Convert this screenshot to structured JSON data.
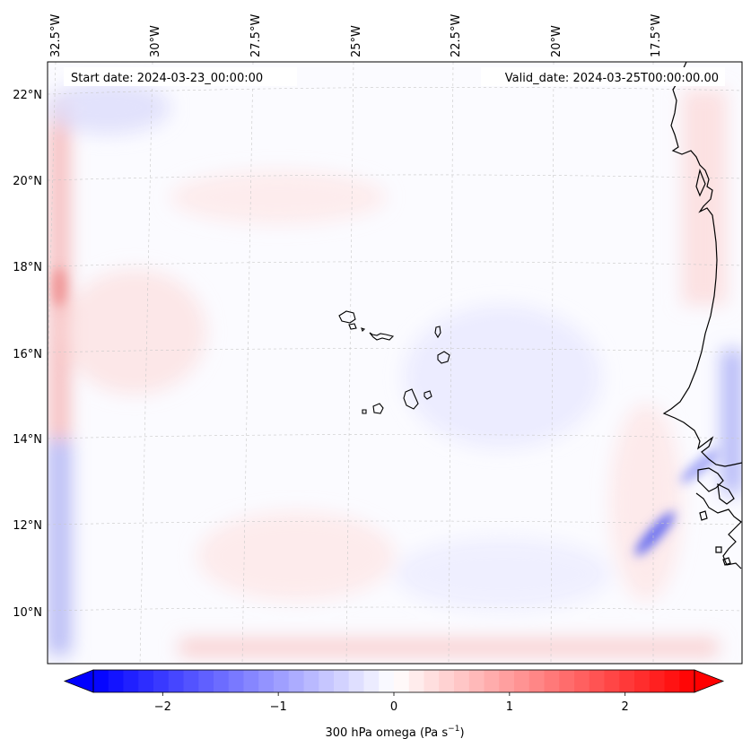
{
  "map": {
    "start_date_label": "Start date: 2024-03-23_00:00:00",
    "valid_date_label": "Valid_date: 2024-03-25T00:00:00.00",
    "lon_labels": [
      "32.5°W",
      "30°W",
      "27.5°W",
      "25°W",
      "22.5°W",
      "20°W",
      "17.5°W"
    ],
    "lat_labels": [
      "22°N",
      "20°N",
      "18°N",
      "16°N",
      "14°N",
      "12°N",
      "10°N"
    ],
    "variable": "300 hPa omega"
  },
  "colorbar": {
    "ticks": [
      "−2",
      "−1",
      "0",
      "1",
      "2"
    ],
    "tick_values": [
      -2,
      -1,
      0,
      1,
      2
    ],
    "vmin": -2.6,
    "vmax": 2.6,
    "label_main": "300 hPa omega (Pa s",
    "label_exp": "−1",
    "label_close": ")",
    "low_color": "#0000ff",
    "mid_color": "#ffffff",
    "high_color": "#ff0000"
  }
}
